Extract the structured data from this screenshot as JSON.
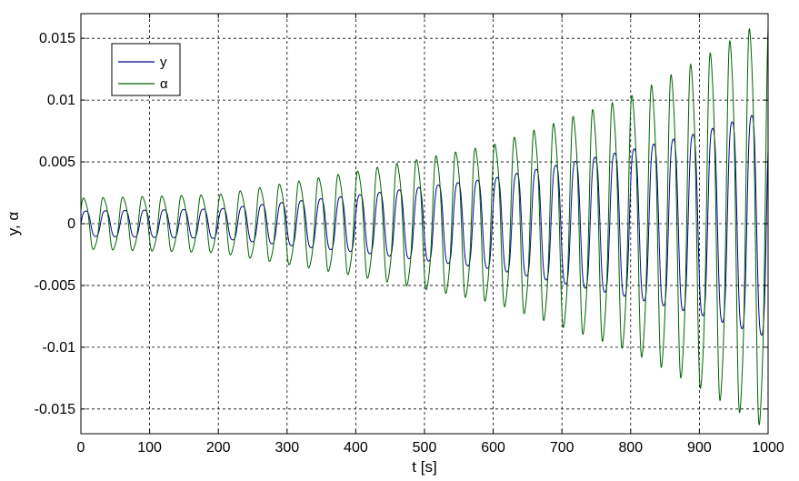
{
  "chart_data": {
    "type": "line",
    "title": "",
    "xlabel": "t [s]",
    "ylabel": "y, α",
    "xlim": [
      0,
      1000
    ],
    "ylim": [
      -0.017,
      0.017
    ],
    "x_ticks": [
      0,
      100,
      200,
      300,
      400,
      500,
      600,
      700,
      800,
      900,
      1000
    ],
    "x_tick_labels": [
      "0",
      "100",
      "200",
      "300",
      "400",
      "500",
      "600",
      "700",
      "800",
      "900",
      "1000"
    ],
    "y_ticks": [
      0.015,
      0.01,
      0.005,
      0,
      -0.005,
      -0.01,
      -0.015
    ],
    "y_tick_labels": [
      "0.015",
      "0.01",
      "0.005",
      "0",
      "-0.005",
      "-0.01",
      "-0.015"
    ],
    "grid": true,
    "legend": {
      "position": "top-left",
      "entries": [
        {
          "name": "y",
          "color": "#00008B"
        },
        {
          "name": "α",
          "color": "#006400"
        }
      ]
    },
    "series": [
      {
        "name": "y",
        "color": "#00008B",
        "description_points": {
          "period_s": 28.5,
          "amplitude_envelope": {
            "t": [
              0,
              200,
              400,
              600,
              800,
              900,
              1000
            ],
            "amp": [
              0.0011,
              0.0013,
              0.0025,
              0.004,
              0.0065,
              0.008,
              0.01
            ]
          },
          "phase_rad": 0.0
        }
      },
      {
        "name": "α",
        "color": "#006400",
        "description_points": {
          "period_s": 28.5,
          "amplitude_envelope": {
            "t": [
              0,
              200,
              400,
              600,
              800,
              900,
              1000
            ],
            "amp": [
              0.0021,
              0.0024,
              0.0043,
              0.0065,
              0.0105,
              0.0135,
              0.017
            ]
          },
          "phase_rad": 0.5
        }
      }
    ]
  }
}
